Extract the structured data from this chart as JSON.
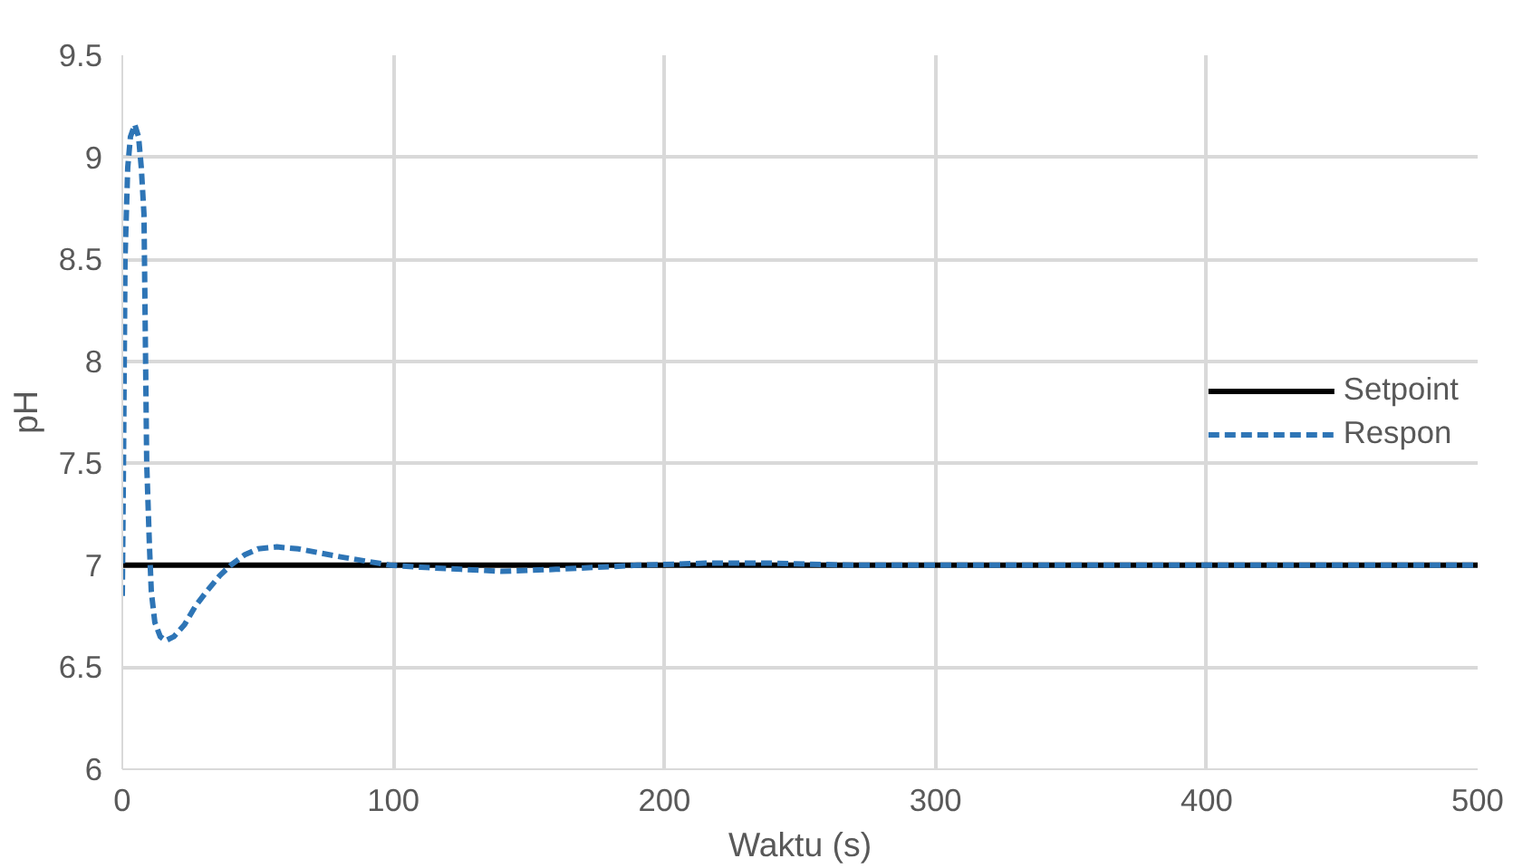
{
  "chart_data": {
    "type": "line",
    "xlabel": "Waktu (s)",
    "ylabel": "pH",
    "xlim": [
      0,
      500
    ],
    "xticks": [
      0,
      100,
      200,
      300,
      400,
      500
    ],
    "ylim": [
      6,
      9.5
    ],
    "yticks": [
      6,
      6.5,
      7,
      7.5,
      8,
      8.5,
      9,
      9.5
    ],
    "grid": true,
    "legend": "right",
    "series": [
      {
        "name": "Setpoint",
        "color": "#000000",
        "line_style": "solid",
        "x": [
          0,
          500
        ],
        "values": [
          7,
          7
        ]
      },
      {
        "name": "Respon",
        "color": "#2e75b6",
        "line_style": "dashed",
        "x": [
          0,
          0.5,
          1,
          2,
          3,
          4.6,
          6,
          7,
          8,
          9,
          10,
          10.7,
          12,
          14,
          16,
          19,
          23,
          27,
          31,
          36,
          40,
          45,
          50,
          57,
          65,
          73,
          81,
          90,
          99,
          110,
          125,
          140,
          160,
          190,
          215,
          240,
          270,
          300,
          350,
          400,
          450,
          500
        ],
        "values": [
          6.85,
          7.6,
          8.5,
          8.95,
          9.1,
          9.16,
          9.1,
          8.95,
          8.72,
          7.5,
          7.1,
          6.87,
          6.72,
          6.65,
          6.63,
          6.65,
          6.71,
          6.8,
          6.87,
          6.95,
          7.0,
          7.05,
          7.08,
          7.09,
          7.08,
          7.06,
          7.04,
          7.02,
          7.0,
          6.99,
          6.98,
          6.97,
          6.98,
          7.0,
          7.01,
          7.01,
          7.0,
          7.0,
          7.0,
          7.0,
          7.0,
          7.0
        ]
      }
    ]
  }
}
